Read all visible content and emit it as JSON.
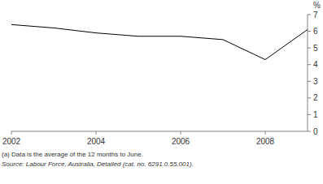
{
  "chart_data": {
    "type": "line",
    "y_label": "%",
    "x": [
      2002,
      2003,
      2004,
      2005,
      2006,
      2007,
      2008,
      2009
    ],
    "series": [
      {
        "name": null,
        "color": "#000000",
        "values": [
          6.4,
          6.2,
          5.9,
          5.7,
          5.7,
          5.5,
          4.3,
          6.1
        ]
      }
    ],
    "xlim": [
      2002,
      2009
    ],
    "xticks": [
      2002,
      2004,
      2006,
      2008
    ],
    "ylim": [
      0,
      7
    ],
    "yticks": [
      0,
      1,
      2,
      3,
      4,
      5,
      6,
      7
    ],
    "grid": false,
    "annotations": [
      "(a) Data is the average of the 12 months to June.",
      "Source: Labour Force, Australia, Detailed (cat. no. 6291.0.55.001)."
    ]
  }
}
